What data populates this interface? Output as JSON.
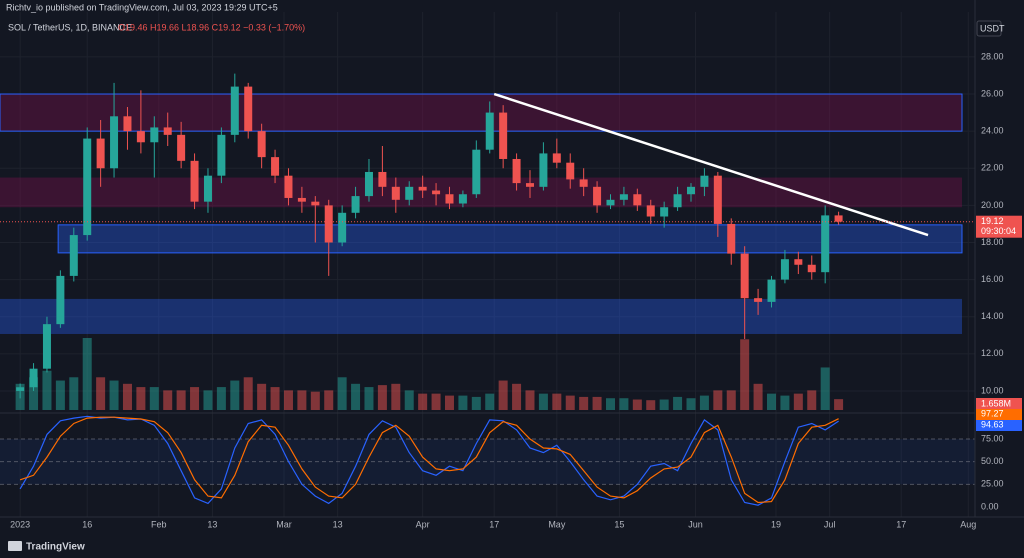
{
  "chart_data": {
    "type": "candlestick",
    "publisher": "Richtv_io published on TradingView.com, Jul 03, 2023 19:29 UTC+5",
    "symbol": "SOL / TetherUS, 1D, BINANCE",
    "ohlc_legend": "O19.46 H19.66 L18.96 C19.12 −0.33 (−1.70%)",
    "currency": "USDT",
    "countdown": "09:30:04",
    "brand": "TradingView",
    "x": [
      0,
      3,
      6,
      9,
      12,
      15,
      18,
      21,
      24,
      27,
      30,
      33,
      36,
      39,
      42,
      45,
      48,
      51,
      54,
      57,
      60,
      63,
      66,
      69,
      72,
      75,
      78,
      81,
      84,
      87,
      90,
      93,
      96,
      99,
      102,
      105,
      108,
      111,
      114,
      117,
      120,
      123,
      126,
      129,
      132,
      135,
      138,
      141,
      144,
      147,
      150,
      153,
      156,
      159,
      162,
      165,
      168,
      171,
      174,
      177,
      180,
      183
    ],
    "open": [
      10.0,
      10.2,
      11.2,
      13.6,
      16.2,
      18.4,
      23.6,
      22.0,
      24.8,
      24.0,
      23.4,
      24.2,
      23.8,
      22.4,
      20.2,
      21.6,
      23.8,
      26.4,
      24.0,
      22.6,
      21.6,
      20.4,
      20.2,
      20.0,
      18.0,
      19.6,
      20.5,
      21.8,
      21.0,
      20.3,
      21.0,
      20.8,
      20.6,
      20.1,
      20.6,
      23.0,
      25.0,
      22.5,
      21.2,
      21.0,
      22.8,
      22.3,
      21.4,
      21.0,
      20.0,
      20.3,
      20.6,
      20.0,
      19.4,
      19.9,
      20.6,
      21.0,
      21.6,
      19.0,
      17.4,
      15.0,
      14.8,
      16.0,
      17.1,
      16.8,
      16.4,
      19.46
    ],
    "high": [
      10.4,
      11.5,
      14.0,
      16.5,
      18.8,
      24.2,
      24.6,
      26.6,
      25.3,
      26.2,
      24.8,
      25.0,
      24.5,
      22.8,
      22.0,
      24.2,
      27.1,
      26.6,
      24.4,
      23.0,
      22.0,
      21.0,
      20.5,
      20.3,
      20.0,
      21.0,
      22.5,
      23.2,
      21.5,
      21.3,
      21.6,
      21.2,
      21.0,
      20.8,
      23.5,
      25.6,
      25.4,
      22.8,
      21.9,
      23.4,
      23.6,
      22.8,
      22.0,
      21.3,
      20.6,
      21.0,
      20.9,
      20.3,
      20.2,
      21.0,
      21.2,
      22.0,
      21.8,
      19.3,
      17.8,
      15.5,
      16.2,
      17.6,
      17.5,
      17.3,
      20.0,
      19.66
    ],
    "low": [
      9.6,
      10.0,
      11.0,
      13.4,
      15.9,
      18.1,
      21.0,
      21.5,
      23.0,
      22.8,
      21.5,
      23.2,
      22.0,
      19.8,
      19.6,
      21.2,
      23.4,
      23.6,
      22.0,
      21.2,
      20.0,
      19.6,
      18.0,
      16.2,
      17.8,
      19.3,
      20.2,
      20.5,
      19.6,
      20.0,
      20.4,
      20.0,
      19.8,
      19.9,
      20.4,
      22.8,
      22.0,
      20.8,
      20.4,
      20.8,
      22.0,
      20.9,
      20.5,
      19.6,
      19.8,
      20.0,
      19.7,
      19.0,
      18.8,
      19.7,
      20.2,
      20.5,
      18.3,
      16.8,
      12.8,
      14.1,
      14.5,
      15.8,
      16.3,
      16.0,
      15.8,
      18.96
    ],
    "close": [
      10.2,
      11.2,
      13.6,
      16.2,
      18.4,
      23.6,
      22.0,
      24.8,
      24.0,
      23.4,
      24.2,
      23.8,
      22.4,
      20.2,
      21.6,
      23.8,
      26.4,
      24.0,
      22.6,
      21.6,
      20.4,
      20.2,
      20.0,
      18.0,
      19.6,
      20.5,
      21.8,
      21.0,
      20.3,
      21.0,
      20.8,
      20.6,
      20.1,
      20.6,
      23.0,
      25.0,
      22.5,
      21.2,
      21.0,
      22.8,
      22.3,
      21.4,
      21.0,
      20.0,
      20.3,
      20.6,
      20.0,
      19.4,
      19.9,
      20.6,
      21.0,
      21.6,
      19.0,
      17.4,
      15.0,
      14.8,
      16.0,
      17.1,
      16.8,
      16.4,
      19.46,
      19.12
    ],
    "up_color": "#26a69a",
    "down_color": "#ef5350",
    "xlim": [
      -4.5,
      213.5
    ],
    "xticks": [
      {
        "value": 0,
        "label": "2023"
      },
      {
        "value": 15,
        "label": "16"
      },
      {
        "value": 31,
        "label": "Feb"
      },
      {
        "value": 43,
        "label": "13"
      },
      {
        "value": 59,
        "label": "Mar"
      },
      {
        "value": 71,
        "label": "13"
      },
      {
        "value": 90,
        "label": "Apr"
      },
      {
        "value": 106,
        "label": "17"
      },
      {
        "value": 120,
        "label": "May"
      },
      {
        "value": 134,
        "label": "15"
      },
      {
        "value": 151,
        "label": "Jun"
      },
      {
        "value": 169,
        "label": "19"
      },
      {
        "value": 181,
        "label": "Jul"
      },
      {
        "value": 197,
        "label": "17"
      },
      {
        "value": 212,
        "label": "Aug"
      }
    ],
    "ylim": [
      8.92,
      30.42
    ],
    "yticks": [
      {
        "value": 10,
        "label": "10.00"
      },
      {
        "value": 12,
        "label": "12.00"
      },
      {
        "value": 14,
        "label": "14.00"
      },
      {
        "value": 16,
        "label": "16.00"
      },
      {
        "value": 18,
        "label": "18.00"
      },
      {
        "value": 20,
        "label": "20.00"
      },
      {
        "value": 22,
        "label": "22.00"
      },
      {
        "value": 24,
        "label": "24.00"
      },
      {
        "value": 26,
        "label": "26.00"
      },
      {
        "value": 28,
        "label": "28.00"
      }
    ],
    "grid": true,
    "zones": [
      {
        "from": 24.0,
        "to": 26.0,
        "start": -4.5,
        "color": "#880e4f",
        "border": "#2962ff"
      },
      {
        "from": 19.9,
        "to": 21.5,
        "start": -4.5,
        "color": "#880e4f",
        "border": null
      },
      {
        "from": 17.44,
        "to": 18.95,
        "start": 8.5,
        "color": "#2962ff",
        "border": "#2962ff"
      },
      {
        "from": 13.07,
        "to": 14.96,
        "start": -4.5,
        "color": "#2962ff",
        "border": null
      }
    ],
    "trendline": {
      "x": [
        106,
        203
      ],
      "y": [
        26.0,
        18.4
      ],
      "color": "#ffffff"
    },
    "volume": {
      "values": [
        4,
        5,
        6,
        4.5,
        5,
        11,
        5,
        4.5,
        4,
        3.5,
        3.5,
        3,
        3,
        3.5,
        3,
        3.5,
        4.5,
        5,
        4,
        3.5,
        3,
        3,
        2.8,
        3,
        5,
        4,
        3.5,
        3.8,
        4,
        3,
        2.5,
        2.5,
        2.2,
        2.2,
        2,
        2.5,
        4.5,
        4,
        3,
        2.5,
        2.5,
        2.2,
        2,
        2,
        1.8,
        1.8,
        1.6,
        1.5,
        1.6,
        2,
        1.8,
        2.2,
        3,
        3,
        10.8,
        4,
        2.5,
        2.2,
        2.5,
        3,
        6.5,
        1.658
      ],
      "value_labels": [
        null,
        null,
        null,
        null,
        null,
        null,
        null,
        null,
        null,
        null,
        null,
        null,
        null,
        null,
        null,
        null,
        null,
        null,
        null,
        null,
        null,
        null,
        null,
        null,
        null,
        null,
        null,
        null,
        null,
        null,
        null,
        null,
        null,
        null,
        null,
        null,
        null,
        null,
        null,
        null,
        null,
        null,
        null,
        null,
        null,
        null,
        null,
        null,
        null,
        null,
        null,
        null,
        null,
        null,
        null,
        null,
        null,
        null,
        null,
        null,
        null,
        "1.658M"
      ]
    },
    "stoch": {
      "ylim": [
        -11,
        100.3
      ],
      "yticks": [
        {
          "value": 75,
          "label": "75.00"
        },
        {
          "value": 50,
          "label": "50.00"
        },
        {
          "value": 25,
          "label": "25.00"
        },
        {
          "value": 0,
          "label": "0.00"
        }
      ],
      "series": [
        {
          "color": "#2962ff",
          "values": [
            20,
            45,
            80,
            95,
            98,
            100,
            98,
            99,
            96,
            97,
            90,
            70,
            40,
            10,
            4,
            20,
            65,
            92,
            96,
            80,
            50,
            25,
            12,
            4,
            15,
            45,
            80,
            95,
            88,
            60,
            40,
            35,
            45,
            40,
            70,
            96,
            95,
            85,
            65,
            60,
            68,
            50,
            30,
            12,
            8,
            12,
            25,
            45,
            48,
            40,
            70,
            96,
            85,
            30,
            5,
            2,
            10,
            50,
            88,
            92,
            85,
            94.63
          ]
        },
        {
          "color": "#ff6d00",
          "values": [
            30,
            35,
            55,
            78,
            92,
            98,
            99,
            99,
            98,
            97,
            94,
            82,
            60,
            30,
            12,
            10,
            35,
            72,
            90,
            88,
            68,
            42,
            22,
            12,
            10,
            25,
            55,
            82,
            90,
            78,
            55,
            42,
            40,
            42,
            55,
            82,
            94,
            90,
            75,
            65,
            64,
            58,
            40,
            22,
            12,
            10,
            18,
            32,
            42,
            44,
            55,
            82,
            90,
            55,
            15,
            5,
            6,
            30,
            70,
            88,
            90,
            97.27
          ]
        }
      ]
    }
  }
}
